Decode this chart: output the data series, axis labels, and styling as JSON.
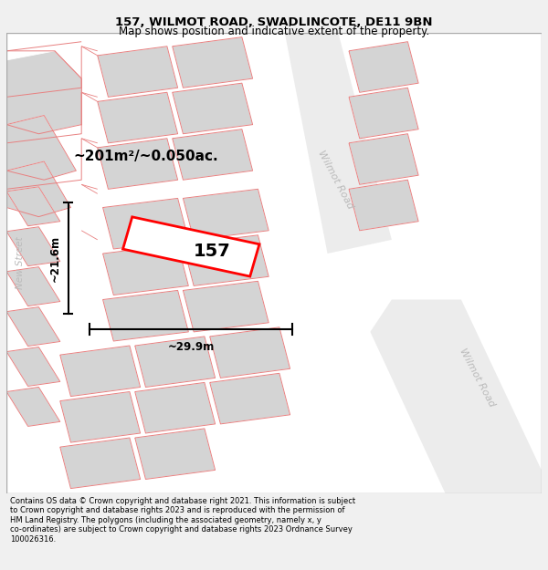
{
  "title": "157, WILMOT ROAD, SWADLINCOTE, DE11 9BN",
  "subtitle": "Map shows position and indicative extent of the property.",
  "footer": "Contains OS data © Crown copyright and database right 2021. This information is subject to Crown copyright and database rights 2023 and is reproduced with the permission of HM Land Registry. The polygons (including the associated geometry, namely x, y co-ordinates) are subject to Crown copyright and database rights 2023 Ordnance Survey 100026316.",
  "area_label": "~201m²/~0.050ac.",
  "width_label": "~29.9m",
  "height_label": "~21.6m",
  "road_label1": "Wilmot Road",
  "road_label2": "Wilmot Road",
  "street_label": "New Street",
  "number_label": "157",
  "highlight_color": "#ff0000",
  "gray_fill": "#d4d4d4",
  "bg_color": "#f0f0f0",
  "map_bg": "#ffffff",
  "red_line": "#e88080",
  "title_fontsize": 9.5,
  "subtitle_fontsize": 8.5,
  "footer_fontsize": 6.0
}
